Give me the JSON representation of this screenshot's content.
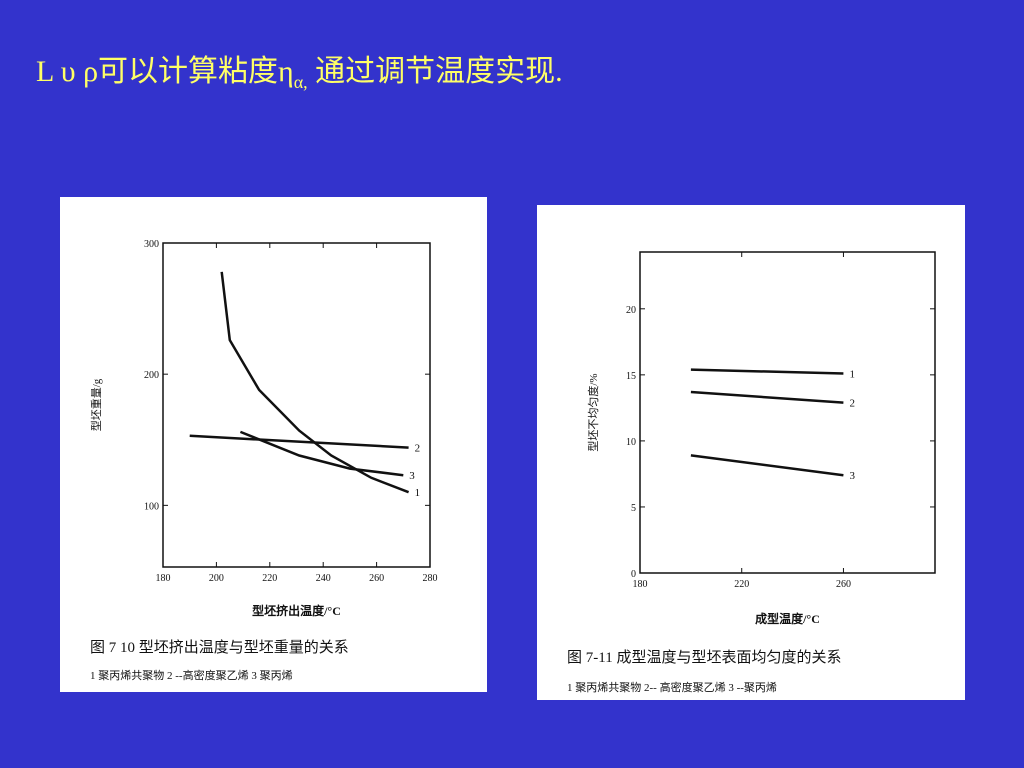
{
  "title_parts": [
    "L υ ρ可以计算粘度η",
    "α,",
    " 通过调节温度实现."
  ],
  "chart_data": [
    {
      "type": "line",
      "ylabel": "型坯重量/g",
      "xlabel": "型坯挤出温度/°C",
      "caption": "图 7 10 型坯挤出温度与型坯重量的关系",
      "legend_text": "1 聚丙烯共聚物 2 --高密度聚乙烯 3 聚丙烯",
      "xlim": [
        180,
        280
      ],
      "xticks": [
        180,
        200,
        220,
        240,
        260,
        280
      ],
      "ylim": [
        53,
        300
      ],
      "yticks": [
        100,
        200,
        300
      ],
      "series": [
        {
          "name": "1",
          "color": "#111111",
          "x": [
            202,
            205,
            216,
            231,
            243,
            258,
            272
          ],
          "values": [
            278,
            226,
            188,
            157,
            138,
            121,
            110
          ]
        },
        {
          "name": "2",
          "color": "#111111",
          "x": [
            190,
            272
          ],
          "values": [
            153,
            144
          ]
        },
        {
          "name": "3",
          "color": "#111111",
          "x": [
            209,
            231,
            250,
            270
          ],
          "values": [
            156,
            138,
            128,
            123
          ]
        }
      ]
    },
    {
      "type": "line",
      "ylabel": "型坯不均匀度/%",
      "xlabel": "成型温度/°C",
      "caption": "图 7-11 成型温度与型坯表面均匀度的关系",
      "legend_text": "1 聚丙烯共聚物 2-- 高密度聚乙烯 3 --聚丙烯",
      "xlim": [
        180,
        296
      ],
      "xticks": [
        180,
        220,
        260
      ],
      "ylim": [
        0,
        24.3
      ],
      "yticks": [
        0,
        5,
        10,
        15,
        20
      ],
      "series": [
        {
          "name": "1",
          "color": "#111111",
          "x": [
            200,
            260
          ],
          "values": [
            15.4,
            15.1
          ]
        },
        {
          "name": "2",
          "color": "#111111",
          "x": [
            200,
            260
          ],
          "values": [
            13.7,
            12.9
          ]
        },
        {
          "name": "3",
          "color": "#111111",
          "x": [
            200,
            260
          ],
          "values": [
            8.9,
            7.4
          ]
        }
      ]
    }
  ]
}
